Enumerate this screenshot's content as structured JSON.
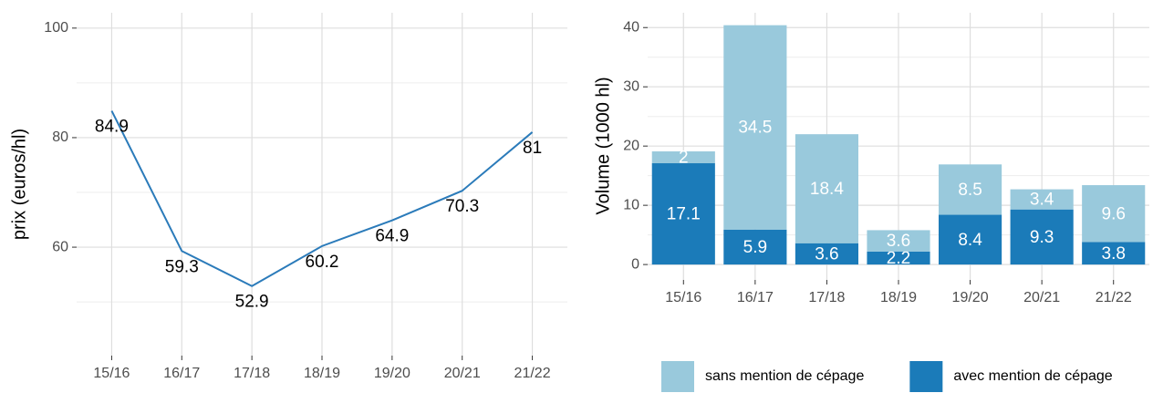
{
  "chart_data": [
    {
      "type": "line",
      "y_label": "prix (euros/hl)",
      "categories": [
        "15/16",
        "16/17",
        "17/18",
        "18/19",
        "19/20",
        "20/21",
        "21/22"
      ],
      "values": [
        84.9,
        59.3,
        52.9,
        60.2,
        64.9,
        70.3,
        81
      ],
      "color": "#2b7bba",
      "ylim": [
        40.2,
        102.8
      ],
      "yticks": [
        60,
        80,
        100
      ],
      "grid": true
    },
    {
      "type": "stacked_bar",
      "y_label": "Volume (1000 hl)",
      "categories": [
        "15/16",
        "16/17",
        "17/18",
        "18/19",
        "19/20",
        "20/21",
        "21/22"
      ],
      "series": [
        {
          "name": "avec mention de cépage",
          "color": "#1b7bb9",
          "values": [
            17.1,
            5.9,
            3.6,
            2.2,
            8.4,
            9.3,
            3.8
          ]
        },
        {
          "name": "sans mention de cépage",
          "color": "#99c9dc",
          "values": [
            2,
            34.5,
            18.4,
            3.6,
            8.5,
            3.4,
            9.6
          ]
        }
      ],
      "ylim": [
        -2.6,
        42.5
      ],
      "yticks": [
        0,
        10,
        20,
        30,
        40
      ],
      "grid": true,
      "legend": "bottom"
    }
  ]
}
